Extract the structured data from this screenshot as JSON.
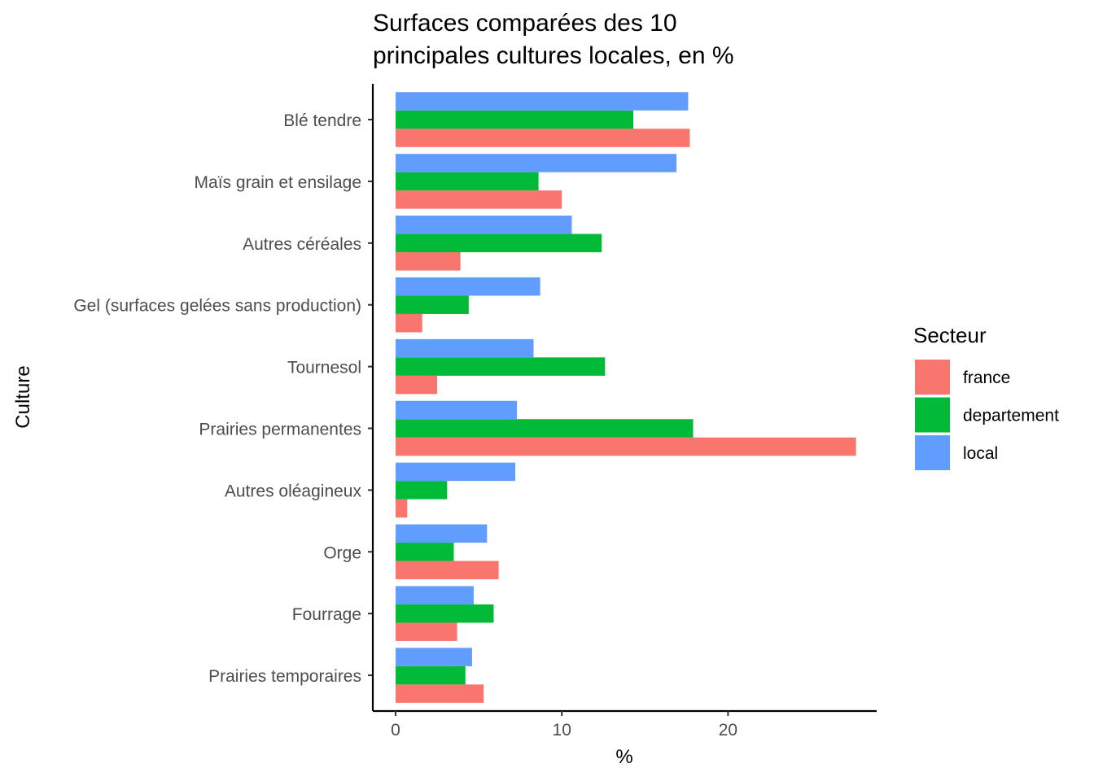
{
  "chart_data": {
    "type": "bar",
    "orientation": "horizontal",
    "title_lines": [
      "Surfaces comparées des 10",
      "principales cultures locales, en %"
    ],
    "xlabel": "%",
    "ylabel": "Culture",
    "xlim": [
      0,
      28.5
    ],
    "x_ticks": [
      0,
      10,
      20
    ],
    "grid": false,
    "legend_title": "Secteur",
    "legend_position": "right",
    "categories": [
      "Blé tendre",
      "Maïs grain et ensilage",
      "Autres céréales",
      "Gel (surfaces gelées sans production)",
      "Tournesol",
      "Prairies permanentes",
      "Autres oléagineux",
      "Orge",
      "Fourrage",
      "Prairies temporaires"
    ],
    "series": [
      {
        "name": "france",
        "color": "#F8766D",
        "values": [
          17.7,
          10.0,
          3.9,
          1.6,
          2.5,
          27.7,
          0.7,
          6.2,
          3.7,
          5.3
        ]
      },
      {
        "name": "departement",
        "color": "#00BA38",
        "values": [
          14.3,
          8.6,
          12.4,
          4.4,
          12.6,
          17.9,
          3.1,
          3.5,
          5.9,
          4.2
        ]
      },
      {
        "name": "local",
        "color": "#619CFF",
        "values": [
          17.6,
          16.9,
          10.6,
          8.7,
          8.3,
          7.3,
          7.2,
          5.5,
          4.7,
          4.6
        ]
      }
    ]
  }
}
